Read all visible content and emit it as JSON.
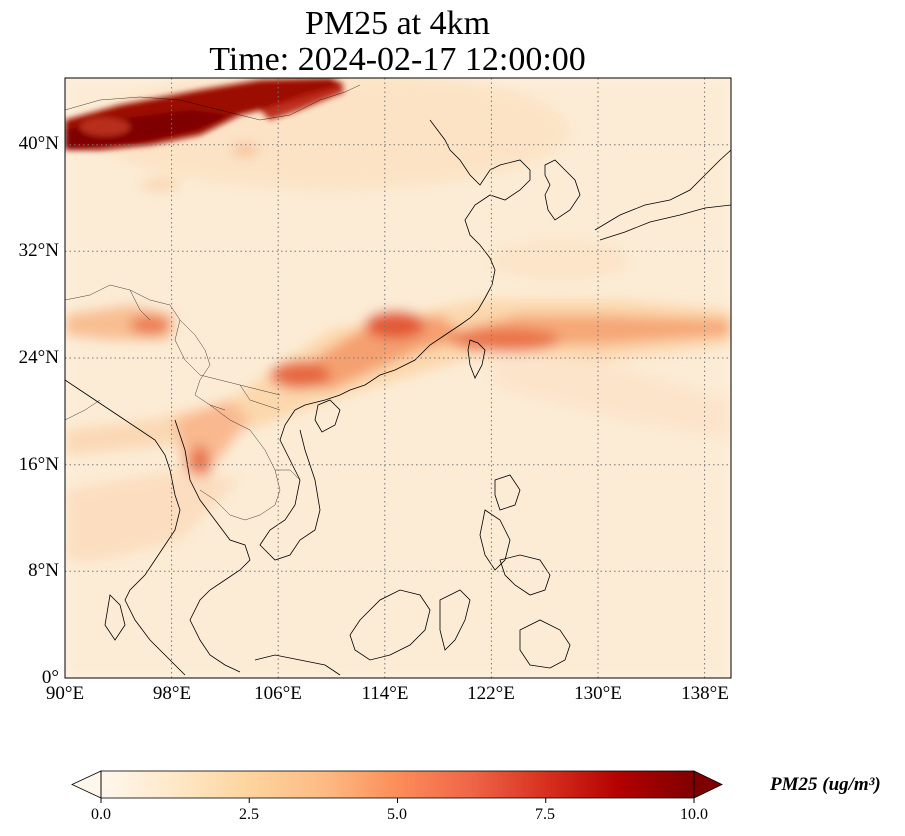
{
  "title": {
    "line1": "PM25 at 4km",
    "line2": "Time: 2024-02-17 12:00:00"
  },
  "map": {
    "lon_range": [
      90,
      140
    ],
    "lat_range": [
      0,
      45
    ],
    "gridline_style": "dotted",
    "x_ticks": [
      {
        "value": 90,
        "label": "90°E"
      },
      {
        "value": 98,
        "label": "98°E"
      },
      {
        "value": 106,
        "label": "106°E"
      },
      {
        "value": 114,
        "label": "114°E"
      },
      {
        "value": 122,
        "label": "122°E"
      },
      {
        "value": 130,
        "label": "130°E"
      },
      {
        "value": 138,
        "label": "138°E"
      }
    ],
    "y_ticks": [
      {
        "value": 0,
        "label": "0°"
      },
      {
        "value": 8,
        "label": "8°N"
      },
      {
        "value": 16,
        "label": "16°N"
      },
      {
        "value": 24,
        "label": "24°N"
      },
      {
        "value": 32,
        "label": "32°N"
      },
      {
        "value": 40,
        "label": "40°N"
      }
    ]
  },
  "colorbar": {
    "label": "PM25 (ug/m³)",
    "colormap": "OrRd",
    "min": 0.0,
    "max": 10.0,
    "extend": "both",
    "ticks": [
      "0.0",
      "2.5",
      "5.0",
      "7.5",
      "10.0"
    ]
  },
  "colors": {
    "low": "#fff7ec",
    "mid": "#fc8d59",
    "high": "#7f0000",
    "coastline": "#000000",
    "gridline": "#888888"
  }
}
